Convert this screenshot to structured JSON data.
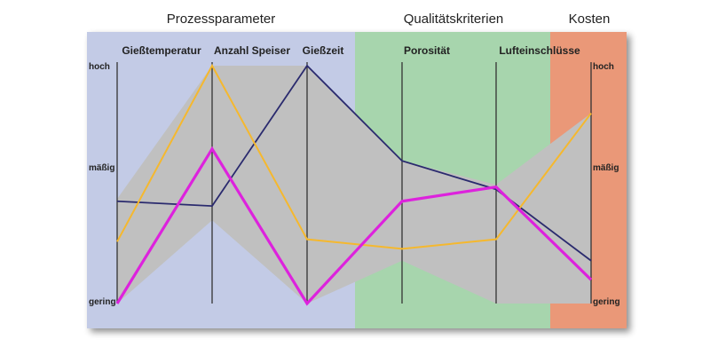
{
  "chart_data": {
    "type": "parallel-coordinates",
    "groups": [
      {
        "title": "Prozessparameter",
        "axes": [
          0,
          1,
          2
        ],
        "color": "#c3cbe6"
      },
      {
        "title": "Qualitätskriterien",
        "axes": [
          3,
          4
        ],
        "color": "#a7d5ad"
      },
      {
        "title": "Kosten",
        "axes": [
          5
        ],
        "color": "#ea9878"
      }
    ],
    "axes": [
      "Gießtemperatur",
      "Anzahl Speiser",
      "Gießzeit",
      "Porosität",
      "Lufteinschlüsse",
      ""
    ],
    "levels": {
      "top": "hoch",
      "middle": "mäßig",
      "bottom": "gering"
    },
    "ylim": [
      0,
      1
    ],
    "range_band": {
      "color": "#c0c0c0",
      "upper": [
        0.44,
        1.0,
        1.0,
        0.6,
        0.5,
        0.8
      ],
      "lower": [
        0.0,
        0.35,
        0.0,
        0.18,
        0.0,
        0.0
      ]
    },
    "series": [
      {
        "color": "#2a2a6e",
        "values": [
          0.43,
          0.41,
          1.0,
          0.6,
          0.48,
          0.18
        ]
      },
      {
        "color": "#f5b82e",
        "values": [
          0.26,
          1.0,
          0.27,
          0.23,
          0.27,
          0.8
        ]
      },
      {
        "color": "#dd22dd",
        "values": [
          0.0,
          0.65,
          0.0,
          0.43,
          0.49,
          0.1
        ]
      }
    ]
  }
}
